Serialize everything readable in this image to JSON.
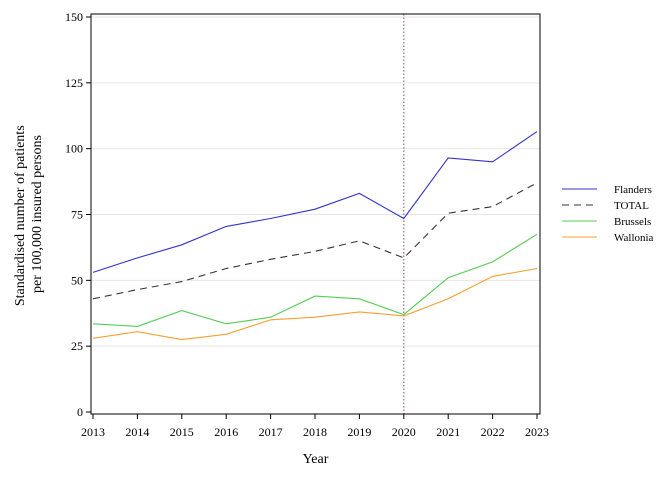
{
  "chart_data": {
    "type": "line",
    "x": [
      2013,
      2014,
      2015,
      2016,
      2017,
      2018,
      2019,
      2020,
      2021,
      2022,
      2023
    ],
    "xticks": [
      "2013",
      "2014",
      "2015",
      "2016",
      "2017",
      "2018",
      "2019",
      "2020",
      "2021",
      "2022",
      "2023"
    ],
    "yticks": [
      "0",
      "25",
      "50",
      "75",
      "100",
      "125",
      "150"
    ],
    "ylim": [
      0,
      150
    ],
    "xlim": [
      2013,
      2023
    ],
    "xlabel": "Year",
    "ylabel_lines": [
      "Standardised number of patients",
      "per 100,000 insured persons"
    ],
    "reference_line_x": 2020,
    "grid": "horizontal",
    "legend_position": "right",
    "series": [
      {
        "name": "Flanders",
        "color": "#3333cc",
        "dash": "solid",
        "values": [
          53,
          58.5,
          63.5,
          70.5,
          73.5,
          77,
          83,
          73.5,
          96.5,
          95,
          106.5
        ]
      },
      {
        "name": "TOTAL",
        "color": "#333333",
        "dash": "dashed",
        "values": [
          43,
          46.5,
          49.5,
          54.5,
          58,
          61,
          65,
          58.5,
          75.5,
          78,
          87
        ]
      },
      {
        "name": "Brussels",
        "color": "#55cc55",
        "dash": "solid",
        "values": [
          33.5,
          32.5,
          38.5,
          33.5,
          36,
          44,
          43,
          37,
          51,
          57,
          67.5
        ]
      },
      {
        "name": "Wallonia",
        "color": "#f5a030",
        "dash": "solid",
        "values": [
          28,
          30.5,
          27.5,
          29.5,
          35,
          36,
          38,
          36.5,
          43,
          51.5,
          54.5
        ]
      }
    ]
  }
}
